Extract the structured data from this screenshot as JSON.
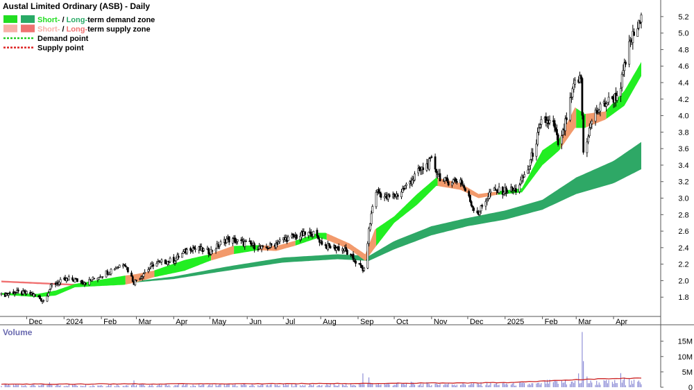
{
  "chart_data": {
    "type": "candlestick",
    "title": "Austal Limited Ordinary (ASB) - Daily",
    "legend": [
      {
        "kind": "zone",
        "parts": [
          "Short-",
          " / ",
          "Long-term demand zone"
        ],
        "colors": [
          "#22dd22",
          "#2aaa66"
        ]
      },
      {
        "kind": "zone",
        "parts": [
          "Short-",
          " / ",
          "Long-term supply zone"
        ],
        "colors": [
          "#f7b0a8",
          "#f07070"
        ]
      },
      {
        "kind": "line",
        "label": "Demand point",
        "color": "#22cc22"
      },
      {
        "kind": "line",
        "label": "Supply point",
        "color": "#dd2222"
      }
    ],
    "price_axis": {
      "min": 1.6,
      "max": 5.3,
      "ticks": [
        "1.8",
        "2.0",
        "2.2",
        "2.4",
        "2.6",
        "2.8",
        "3.0",
        "3.2",
        "3.4",
        "3.6",
        "3.8",
        "4.0",
        "4.2",
        "4.4",
        "4.6",
        "4.8",
        "5.0",
        "5.2"
      ]
    },
    "x_axis": {
      "start": "2023-11-10",
      "end": "2025-04-24",
      "labels": [
        {
          "date": "2023-12-01",
          "text": "Dec"
        },
        {
          "date": "2024-01-01",
          "text": "2024"
        },
        {
          "date": "2024-02-01",
          "text": "Feb"
        },
        {
          "date": "2024-03-01",
          "text": "Mar"
        },
        {
          "date": "2024-04-01",
          "text": "Apr"
        },
        {
          "date": "2024-05-01",
          "text": "May"
        },
        {
          "date": "2024-06-01",
          "text": "Jun"
        },
        {
          "date": "2024-07-01",
          "text": "Jul"
        },
        {
          "date": "2024-08-01",
          "text": "Aug"
        },
        {
          "date": "2024-09-01",
          "text": "Sep"
        },
        {
          "date": "2024-10-01",
          "text": "Oct"
        },
        {
          "date": "2024-11-01",
          "text": "Nov"
        },
        {
          "date": "2024-12-01",
          "text": "Dec"
        },
        {
          "date": "2025-01-01",
          "text": "2025"
        },
        {
          "date": "2025-02-01",
          "text": "Feb"
        },
        {
          "date": "2025-03-01",
          "text": "Mar"
        },
        {
          "date": "2025-04-01",
          "text": "Apr"
        }
      ]
    },
    "price_path": [
      [
        "2023-11-10",
        1.82
      ],
      [
        "2023-11-20",
        1.86
      ],
      [
        "2023-12-05",
        1.84
      ],
      [
        "2023-12-15",
        1.76
      ],
      [
        "2023-12-22",
        1.95
      ],
      [
        "2024-01-05",
        2.02
      ],
      [
        "2024-01-20",
        1.98
      ],
      [
        "2024-02-05",
        2.1
      ],
      [
        "2024-02-20",
        2.22
      ],
      [
        "2024-02-28",
        1.98
      ],
      [
        "2024-03-15",
        2.2
      ],
      [
        "2024-04-01",
        2.25
      ],
      [
        "2024-04-15",
        2.4
      ],
      [
        "2024-05-01",
        2.35
      ],
      [
        "2024-05-15",
        2.5
      ],
      [
        "2024-06-01",
        2.45
      ],
      [
        "2024-06-15",
        2.38
      ],
      [
        "2024-07-01",
        2.5
      ],
      [
        "2024-07-25",
        2.58
      ],
      [
        "2024-08-05",
        2.42
      ],
      [
        "2024-08-20",
        2.38
      ],
      [
        "2024-09-01",
        2.2
      ],
      [
        "2024-09-06",
        2.12
      ],
      [
        "2024-09-10",
        2.6
      ],
      [
        "2024-09-15",
        3.1
      ],
      [
        "2024-09-25",
        3.0
      ],
      [
        "2024-10-05",
        3.05
      ],
      [
        "2024-10-20",
        3.3
      ],
      [
        "2024-11-01",
        3.45
      ],
      [
        "2024-11-10",
        3.2
      ],
      [
        "2024-11-25",
        3.22
      ],
      [
        "2024-12-05",
        2.9
      ],
      [
        "2024-12-10",
        2.82
      ],
      [
        "2024-12-20",
        3.08
      ],
      [
        "2025-01-10",
        3.1
      ],
      [
        "2025-01-20",
        3.35
      ],
      [
        "2025-02-01",
        3.95
      ],
      [
        "2025-02-10",
        3.9
      ],
      [
        "2025-02-15",
        3.6
      ],
      [
        "2025-02-28",
        4.4
      ],
      [
        "2025-03-05",
        4.45
      ],
      [
        "2025-03-07",
        3.55
      ],
      [
        "2025-03-15",
        4.0
      ],
      [
        "2025-03-25",
        4.15
      ],
      [
        "2025-04-05",
        4.25
      ],
      [
        "2025-04-15",
        4.9
      ],
      [
        "2025-04-24",
        5.15
      ]
    ],
    "short_term_zone": [
      [
        "2023-11-10",
        1.85,
        1.83,
        "d"
      ],
      [
        "2023-12-10",
        1.84,
        1.8,
        "d"
      ],
      [
        "2023-12-25",
        1.88,
        1.82,
        "d"
      ],
      [
        "2024-01-10",
        1.96,
        1.92,
        "d"
      ],
      [
        "2024-02-20",
        2.06,
        1.95,
        "s"
      ],
      [
        "2024-03-01",
        2.08,
        1.98,
        "s"
      ],
      [
        "2024-03-15",
        2.12,
        2.04,
        "d"
      ],
      [
        "2024-04-10",
        2.25,
        2.12,
        "d"
      ],
      [
        "2024-05-01",
        2.32,
        2.24,
        "s"
      ],
      [
        "2024-05-20",
        2.42,
        2.32,
        "d"
      ],
      [
        "2024-06-10",
        2.43,
        2.37,
        "s"
      ],
      [
        "2024-06-25",
        2.42,
        2.36,
        "s"
      ],
      [
        "2024-07-10",
        2.48,
        2.42,
        "d"
      ],
      [
        "2024-07-30",
        2.58,
        2.52,
        "d"
      ],
      [
        "2024-08-05",
        2.58,
        2.5,
        "s"
      ],
      [
        "2024-08-25",
        2.45,
        2.38,
        "s"
      ],
      [
        "2024-09-07",
        2.32,
        2.24,
        "s"
      ],
      [
        "2024-09-15",
        2.62,
        2.4,
        "d"
      ],
      [
        "2024-10-01",
        2.78,
        2.7,
        "d"
      ],
      [
        "2024-10-20",
        3.05,
        2.92,
        "d"
      ],
      [
        "2024-11-05",
        3.25,
        3.15,
        "s"
      ],
      [
        "2024-11-25",
        3.18,
        3.1,
        "s"
      ],
      [
        "2024-12-10",
        3.05,
        3.0,
        "s"
      ],
      [
        "2024-12-25",
        3.08,
        3.04,
        "d"
      ],
      [
        "2025-01-15",
        3.12,
        3.07,
        "d"
      ],
      [
        "2025-02-01",
        3.58,
        3.4,
        "d"
      ],
      [
        "2025-02-15",
        3.72,
        3.58,
        "s"
      ],
      [
        "2025-02-28",
        4.1,
        3.85,
        "d"
      ],
      [
        "2025-03-08",
        4.02,
        3.85,
        "s"
      ],
      [
        "2025-03-25",
        4.05,
        3.95,
        "d"
      ],
      [
        "2025-04-10",
        4.3,
        4.12,
        "d"
      ],
      [
        "2025-04-24",
        4.65,
        4.48,
        "d"
      ]
    ],
    "long_term_zone": [
      [
        "2024-02-15",
        1.97,
        1.96
      ],
      [
        "2024-04-01",
        2.05,
        2.02
      ],
      [
        "2024-05-15",
        2.17,
        2.12
      ],
      [
        "2024-07-01",
        2.28,
        2.22
      ],
      [
        "2024-08-15",
        2.32,
        2.26
      ],
      [
        "2024-09-10",
        2.3,
        2.24
      ],
      [
        "2024-10-01",
        2.48,
        2.38
      ],
      [
        "2024-11-01",
        2.66,
        2.55
      ],
      [
        "2024-12-01",
        2.76,
        2.66
      ],
      [
        "2025-01-01",
        2.85,
        2.74
      ],
      [
        "2025-02-01",
        2.98,
        2.86
      ],
      [
        "2025-03-01",
        3.25,
        3.05
      ],
      [
        "2025-04-01",
        3.45,
        3.18
      ],
      [
        "2025-04-24",
        3.68,
        3.35
      ]
    ],
    "early_zone": [
      [
        "2023-11-10",
        2.0,
        1.98
      ],
      [
        "2024-01-10",
        1.96,
        1.94
      ],
      [
        "2024-02-15",
        1.97,
        1.96
      ]
    ],
    "volume": {
      "label": "Volume",
      "axis_max": 19,
      "ticks": [
        {
          "value": 0,
          "text": "0"
        },
        {
          "value": 5,
          "text": "5M"
        },
        {
          "value": 10,
          "text": "10M"
        },
        {
          "value": 15,
          "text": "15M"
        }
      ],
      "base_level": 0.8,
      "spikes": [
        [
          "2023-12-20",
          1.6
        ],
        [
          "2024-02-28",
          2.2
        ],
        [
          "2024-09-05",
          4.5
        ],
        [
          "2024-09-07",
          4.0
        ],
        [
          "2024-09-10",
          3.2
        ],
        [
          "2024-10-15",
          1.8
        ],
        [
          "2025-02-20",
          2.2
        ],
        [
          "2025-03-03",
          4.5
        ],
        [
          "2025-03-06",
          18.0
        ],
        [
          "2025-03-07",
          8.5
        ],
        [
          "2025-03-10",
          3.5
        ],
        [
          "2025-04-07",
          4.6
        ],
        [
          "2025-04-10",
          3.2
        ],
        [
          "2025-04-14",
          2.8
        ]
      ],
      "average_line": [
        [
          "2023-11-10",
          1.0
        ],
        [
          "2024-09-01",
          1.2
        ],
        [
          "2025-01-01",
          1.5
        ],
        [
          "2025-03-10",
          2.6
        ],
        [
          "2025-04-24",
          3.0
        ]
      ]
    }
  }
}
